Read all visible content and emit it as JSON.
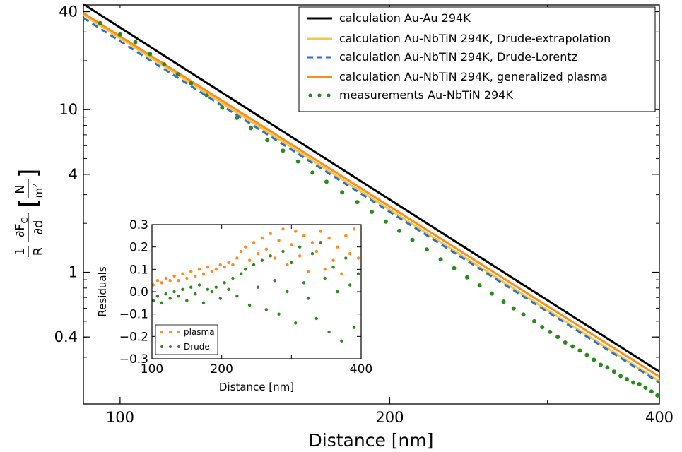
{
  "chart_data": [
    {
      "type": "line",
      "xlabel": "Distance [nm]",
      "ylabel": {
        "prefactor_num": "1",
        "prefactor_den": "R",
        "derivative_num": "∂F",
        "derivative_sub": "C",
        "derivative_den": "∂d",
        "unit_num": "N",
        "unit_den": "m",
        "unit_den_exp": "2"
      },
      "x_scale": "log",
      "y_scale": "log",
      "xlim": [
        91,
        400
      ],
      "ylim": [
        0.155,
        44
      ],
      "x_ticks": [
        100,
        200,
        400
      ],
      "x_tick_labels": [
        "100",
        "200",
        "400"
      ],
      "y_ticks": [
        0.4,
        1,
        4,
        10,
        40
      ],
      "y_tick_labels": [
        "0.4",
        "1",
        "4",
        "10",
        "40"
      ],
      "grid": false,
      "legend_position": "top-right",
      "series": [
        {
          "name": "calculation Au-Au 294K",
          "kind": "line",
          "color": "#000000",
          "style": "solid",
          "x": [
            91,
            400
          ],
          "y": [
            44.5,
            0.245
          ]
        },
        {
          "name": "calculation Au-NbTiN 294K, Drude-extrapolation",
          "kind": "line",
          "color": "#f5c842",
          "style": "solid",
          "x": [
            91,
            400
          ],
          "y": [
            38.2,
            0.214
          ]
        },
        {
          "name": "calculation Au-NbTiN 294K, Drude-Lorentz",
          "kind": "line",
          "color": "#2b6fdc",
          "style": "dashed",
          "x": [
            91,
            400
          ],
          "y": [
            36.6,
            0.21
          ]
        },
        {
          "name": "calculation Au-NbTiN 294K, generalized plasma",
          "kind": "line",
          "color": "#ff8c1a",
          "style": "solid",
          "x": [
            91,
            400
          ],
          "y": [
            39.2,
            0.228
          ]
        },
        {
          "name": "measurements Au-NbTiN 294K",
          "kind": "scatter",
          "color": "#2a8a1f",
          "x": [
            95,
            100,
            104,
            108,
            112,
            116,
            120,
            125,
            130,
            135,
            140,
            146,
            152,
            158,
            164,
            170,
            177,
            184,
            191,
            198,
            205,
            212,
            220,
            228,
            236,
            244,
            252,
            260,
            268,
            275,
            282,
            290,
            296,
            302,
            308,
            314,
            320,
            326,
            332,
            338,
            344,
            350,
            356,
            362,
            368,
            374,
            380,
            386,
            392,
            398
          ],
          "y": [
            34,
            29,
            26,
            22,
            19,
            16.5,
            14.5,
            12.2,
            10.3,
            8.9,
            7.7,
            6.5,
            5.6,
            4.8,
            4.1,
            3.6,
            3.1,
            2.7,
            2.35,
            2.05,
            1.8,
            1.58,
            1.38,
            1.2,
            1.06,
            0.93,
            0.83,
            0.74,
            0.66,
            0.6,
            0.55,
            0.5,
            0.46,
            0.43,
            0.4,
            0.37,
            0.35,
            0.33,
            0.31,
            0.29,
            0.27,
            0.26,
            0.245,
            0.23,
            0.22,
            0.21,
            0.205,
            0.195,
            0.185,
            0.175
          ]
        }
      ]
    },
    {
      "type": "scatter",
      "xlabel": "Distance [nm]",
      "ylabel": "Residuals",
      "xlim": [
        100,
        400
      ],
      "ylim": [
        -0.3,
        0.3
      ],
      "x_ticks": [
        100,
        200,
        300,
        400
      ],
      "x_tick_labels": [
        "100",
        "200",
        "",
        "400"
      ],
      "y_ticks": [
        -0.3,
        -0.2,
        -0.1,
        0.0,
        0.1,
        0.2,
        0.3
      ],
      "y_tick_labels": [
        "−0.3",
        "−0.2",
        "−0.1",
        "0.0",
        "0.1",
        "0.2",
        "0.3"
      ],
      "legend_position": "bottom-left",
      "series": [
        {
          "name": "plasma",
          "color": "#ff8c1a",
          "x": [
            102,
            108,
            114,
            120,
            126,
            132,
            138,
            144,
            150,
            156,
            162,
            168,
            174,
            180,
            186,
            192,
            198,
            204,
            210,
            216,
            222,
            228,
            234,
            240,
            246,
            252,
            258,
            264,
            270,
            276,
            282,
            288,
            294,
            300,
            306,
            312,
            318,
            324,
            330,
            336,
            342,
            348,
            354,
            360,
            366,
            372,
            378,
            384,
            390,
            396
          ],
          "y": [
            0.03,
            0.05,
            0.04,
            0.06,
            0.05,
            0.07,
            0.05,
            0.08,
            0.06,
            0.09,
            0.07,
            0.1,
            0.08,
            0.11,
            0.09,
            0.1,
            0.12,
            0.11,
            0.13,
            0.12,
            0.15,
            0.18,
            0.2,
            0.14,
            0.22,
            0.17,
            0.24,
            0.19,
            0.26,
            0.15,
            0.23,
            0.28,
            0.12,
            0.21,
            0.27,
            0.16,
            0.25,
            0.09,
            0.22,
            0.18,
            0.27,
            0.1,
            0.24,
            0.14,
            0.2,
            0.08,
            0.25,
            0.17,
            0.28,
            0.15
          ]
        },
        {
          "name": "Drude",
          "color": "#2a8a1f",
          "x": [
            102,
            108,
            114,
            120,
            126,
            132,
            138,
            144,
            150,
            156,
            162,
            168,
            174,
            180,
            186,
            192,
            198,
            204,
            210,
            216,
            222,
            228,
            234,
            240,
            246,
            252,
            258,
            264,
            270,
            276,
            282,
            288,
            294,
            300,
            306,
            312,
            318,
            324,
            330,
            336,
            342,
            348,
            354,
            360,
            366,
            372,
            378,
            384,
            390,
            396
          ],
          "y": [
            -0.04,
            -0.02,
            -0.05,
            -0.01,
            -0.03,
            0.0,
            -0.02,
            0.01,
            -0.04,
            0.02,
            -0.01,
            0.03,
            -0.05,
            0.01,
            0.0,
            0.02,
            -0.03,
            0.04,
            0.01,
            0.06,
            -0.02,
            0.08,
            0.1,
            -0.06,
            0.12,
            0.02,
            0.14,
            -0.08,
            0.16,
            0.05,
            -0.1,
            0.18,
            0.0,
            0.13,
            -0.14,
            0.2,
            0.04,
            -0.03,
            0.17,
            -0.12,
            0.22,
            0.06,
            -0.18,
            0.11,
            0.0,
            -0.22,
            0.15,
            0.03,
            -0.16,
            0.08
          ]
        }
      ]
    }
  ]
}
